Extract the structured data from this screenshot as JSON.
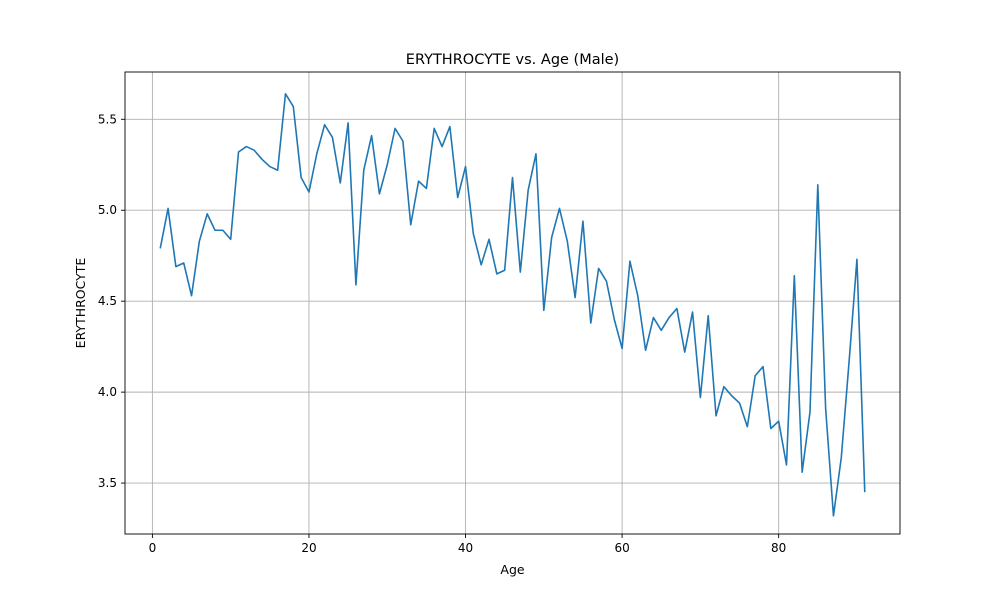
{
  "chart_data": {
    "type": "line",
    "title": "ERYTHROCYTE vs. Age (Male)",
    "xlabel": "Age",
    "ylabel": "ERYTHROCYTE",
    "xlim": [
      -3.5,
      95.5
    ],
    "ylim": [
      3.22,
      5.76
    ],
    "xticks": [
      0,
      20,
      40,
      60,
      80
    ],
    "yticks": [
      3.5,
      4.0,
      4.5,
      5.0,
      5.5
    ],
    "ytick_labels": [
      "3.5",
      "4.0",
      "4.5",
      "5.0",
      "5.5"
    ],
    "grid": true,
    "line_color": "#1f77b4",
    "x": [
      1,
      2,
      3,
      4,
      5,
      6,
      7,
      8,
      9,
      10,
      11,
      12,
      13,
      14,
      15,
      16,
      17,
      18,
      19,
      20,
      21,
      22,
      23,
      24,
      25,
      26,
      27,
      28,
      29,
      30,
      31,
      32,
      33,
      34,
      35,
      36,
      37,
      38,
      39,
      40,
      41,
      42,
      43,
      44,
      45,
      46,
      47,
      48,
      49,
      50,
      51,
      52,
      53,
      54,
      55,
      56,
      57,
      58,
      59,
      60,
      61,
      62,
      63,
      64,
      65,
      66,
      67,
      68,
      69,
      70,
      71,
      72,
      73,
      74,
      75,
      76,
      77,
      78,
      79,
      80,
      81,
      82,
      83,
      84,
      85,
      86,
      87,
      88,
      89,
      90,
      91
    ],
    "y": [
      4.79,
      5.01,
      4.69,
      4.71,
      4.53,
      4.83,
      4.98,
      4.89,
      4.89,
      4.84,
      5.32,
      5.35,
      5.33,
      5.28,
      5.24,
      5.22,
      5.64,
      5.57,
      5.18,
      5.1,
      5.31,
      5.47,
      5.4,
      5.15,
      5.48,
      4.59,
      5.22,
      5.41,
      5.09,
      5.25,
      5.45,
      5.38,
      4.92,
      5.16,
      5.12,
      5.45,
      5.35,
      5.46,
      5.07,
      5.24,
      4.87,
      4.7,
      4.84,
      4.65,
      4.67,
      5.18,
      4.66,
      5.11,
      5.31,
      4.45,
      4.85,
      5.01,
      4.83,
      4.52,
      4.94,
      4.38,
      4.68,
      4.61,
      4.4,
      4.24,
      4.72,
      4.53,
      4.23,
      4.41,
      4.34,
      4.41,
      4.46,
      4.22,
      4.44,
      3.97,
      4.42,
      3.87,
      4.03,
      3.98,
      3.94,
      3.81,
      4.09,
      4.14,
      3.8,
      3.84,
      3.6,
      4.64,
      3.56,
      3.89,
      5.14,
      3.91,
      3.32,
      3.64,
      4.17,
      4.73,
      3.45
    ]
  }
}
